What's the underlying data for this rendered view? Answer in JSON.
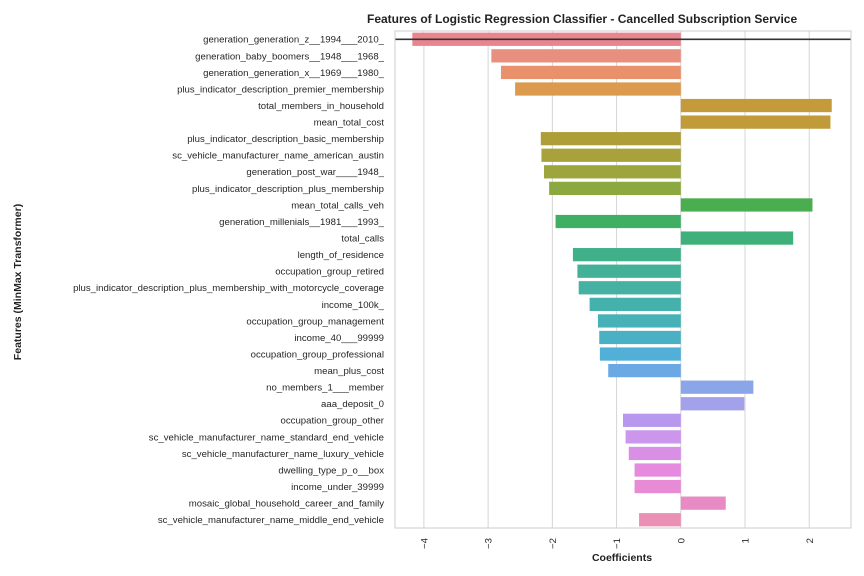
{
  "chart_data": {
    "type": "bar",
    "orientation": "horizontal",
    "title": "Features of Logistic Regression Classifier - Cancelled Subscription Service",
    "xlabel": "Coefficients",
    "ylabel": "Features (MinMax Transformer)",
    "xlim": [
      -4.45,
      2.65
    ],
    "xticks": [
      -4,
      -3,
      -2,
      -1,
      0,
      1,
      2
    ],
    "grid": true,
    "categories": [
      "generation_generation_z__1994___2010_",
      "generation_baby_boomers__1948___1968_",
      "generation_generation_x__1969___1980_",
      "plus_indicator_description_premier_membership",
      "total_members_in_household",
      "mean_total_cost",
      "plus_indicator_description_basic_membership",
      "sc_vehicle_manufacturer_name_american_austin",
      "generation_post_war____1948_",
      "plus_indicator_description_plus_membership",
      "mean_total_calls_veh",
      "generation_millenials__1981___1993_",
      "total_calls",
      "length_of_residence",
      "occupation_group_retired",
      "plus_indicator_description_plus_membership_with_motorcycle_coverage",
      "income_100k_",
      "occupation_group_management",
      "income_40___99999",
      "occupation_group_professional",
      "mean_plus_cost",
      "no_members_1___member",
      "aaa_deposit_0",
      "occupation_group_other",
      "sc_vehicle_manufacturer_name_standard_end_vehicle",
      "sc_vehicle_manufacturer_name_luxury_vehicle",
      "dwelling_type_p_o__box",
      "income_under_39999",
      "mosaic_global_household_career_and_family",
      "sc_vehicle_manufacturer_name_middle_end_vehicle"
    ],
    "values": [
      -4.18,
      -2.95,
      -2.8,
      -2.58,
      2.35,
      2.33,
      -2.18,
      -2.17,
      -2.13,
      -2.05,
      2.05,
      -1.95,
      1.75,
      -1.68,
      -1.61,
      -1.59,
      -1.42,
      -1.29,
      -1.27,
      -1.26,
      -1.13,
      1.13,
      0.99,
      -0.9,
      -0.86,
      -0.81,
      -0.72,
      -0.72,
      0.7,
      -0.65
    ],
    "colors": [
      "#e8858f",
      "#e89080",
      "#e8916c",
      "#dc9a4f",
      "#c49a3b",
      "#c19b3a",
      "#ad9e3a",
      "#a8a13c",
      "#9ca63d",
      "#8ba93f",
      "#4aad4f",
      "#3fb063",
      "#3fb07a",
      "#40b08a",
      "#42b197",
      "#44b1a2",
      "#45b1ad",
      "#47b1b8",
      "#4ab1c4",
      "#52afd8",
      "#6aa9e3",
      "#8aa6e8",
      "#a3a0ec",
      "#b898ee",
      "#cc96ec",
      "#d98fe6",
      "#e68ae0",
      "#e88bd5",
      "#e88bc4",
      "#e990b4"
    ],
    "reference_line_value": -4.18
  }
}
